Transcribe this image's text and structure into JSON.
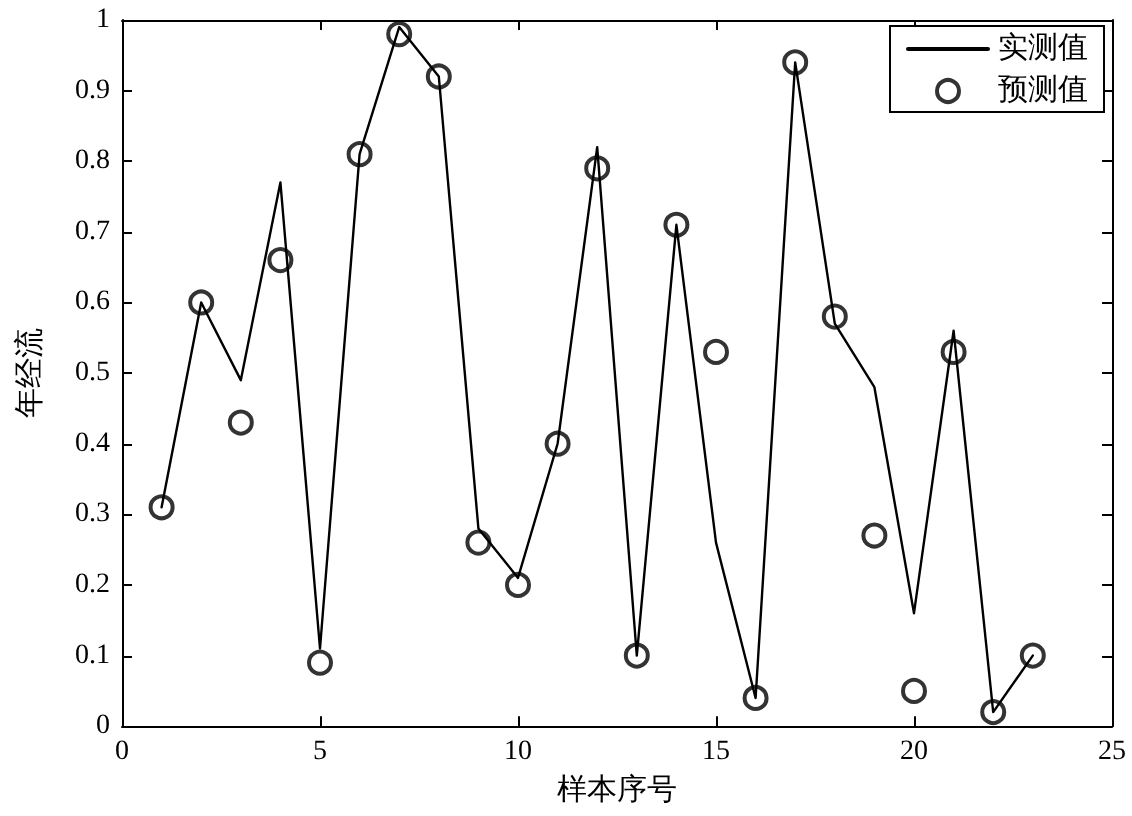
{
  "chart_data": {
    "type": "line",
    "xlabel": "样本序号",
    "ylabel": "年经流",
    "x": [
      1,
      2,
      3,
      4,
      5,
      6,
      7,
      8,
      9,
      10,
      11,
      12,
      13,
      14,
      15,
      16,
      17,
      18,
      19,
      20,
      21,
      22,
      23
    ],
    "series": [
      {
        "name": "实测值",
        "color": "#000000",
        "marker": "none",
        "line_style": "solid",
        "values": [
          0.31,
          0.6,
          0.49,
          0.77,
          0.11,
          0.81,
          0.99,
          0.92,
          0.28,
          0.21,
          0.4,
          0.82,
          0.1,
          0.71,
          0.26,
          0.04,
          0.94,
          0.57,
          0.48,
          0.16,
          0.56,
          0.02,
          0.1
        ]
      },
      {
        "name": "预测值",
        "type": "scatter",
        "color": "#000000",
        "marker": "circle",
        "values": [
          0.31,
          0.6,
          0.43,
          0.66,
          0.09,
          0.81,
          0.98,
          0.92,
          0.26,
          0.2,
          0.4,
          0.79,
          0.1,
          0.71,
          0.53,
          0.04,
          0.94,
          0.58,
          0.27,
          0.05,
          0.53,
          0.02,
          0.1
        ]
      }
    ],
    "xlim": [
      0,
      25
    ],
    "xticks": [
      0,
      5,
      10,
      15,
      20,
      25
    ],
    "ylim": [
      0,
      1
    ],
    "yticks": [
      0,
      0.1,
      0.2,
      0.3,
      0.4,
      0.5,
      0.6,
      0.7,
      0.8,
      0.9,
      1
    ],
    "grid": false,
    "legend": "top right"
  }
}
